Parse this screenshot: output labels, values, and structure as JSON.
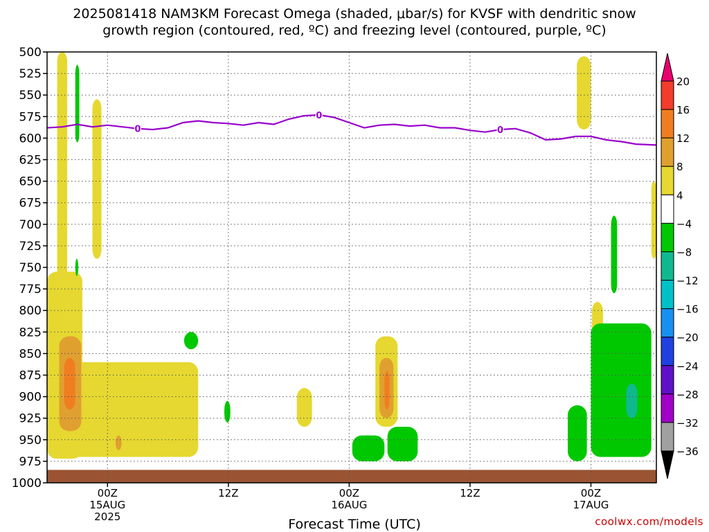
{
  "title_line1": "2025081418 NAM3KM Forecast Omega (shaded, μbar/s) for KVSF with dendritic snow",
  "title_line2": "growth region (contoured, red, ºC) and freezing level (contoured, purple, ºC)",
  "credit": "coolwx.com/models",
  "chart_data": {
    "type": "heatmap",
    "title": "2025081418 NAM3KM Forecast Omega (shaded, μbar/s) for KVSF with dendritic snow growth region (contoured, red, ºC) and freezing level (contoured, purple, ºC)",
    "xlabel": "Forecast Time (UTC)",
    "ylabel": "",
    "y_ticks": [
      500,
      525,
      550,
      575,
      600,
      625,
      650,
      675,
      700,
      725,
      750,
      775,
      800,
      825,
      850,
      875,
      900,
      925,
      950,
      975,
      1000
    ],
    "ylim": [
      1000,
      500
    ],
    "x_ticks": [
      {
        "hour": 0,
        "label1": "00Z",
        "label2": "15AUG",
        "label3": "2025"
      },
      {
        "hour": 12,
        "label1": "12Z",
        "label2": "",
        "label3": ""
      },
      {
        "hour": 24,
        "label1": "00Z",
        "label2": "16AUG",
        "label3": ""
      },
      {
        "hour": 36,
        "label1": "12Z",
        "label2": "",
        "label3": ""
      },
      {
        "hour": 48,
        "label1": "00Z",
        "label2": "17AUG",
        "label3": ""
      }
    ],
    "xlim": [
      -6,
      54.5
    ],
    "grid": true,
    "colorbar": {
      "labels": [
        "20",
        "16",
        "12",
        "8",
        "4",
        "−4",
        "−8",
        "−12",
        "−16",
        "−20",
        "−24",
        "−28",
        "−32",
        "−36"
      ],
      "colors": [
        "#e8006e",
        "#f23c2c",
        "#f07e20",
        "#e0a030",
        "#e6d830",
        "#ffffff",
        "#00c800",
        "#10b890",
        "#00c0c8",
        "#1890f0",
        "#2040e0",
        "#6010c8",
        "#a000c8",
        "#a0a0a0",
        "#000000"
      ]
    },
    "freezing_level": {
      "color": "#9900cc",
      "label": "0",
      "points": [
        [
          -6,
          588
        ],
        [
          -4.5,
          587
        ],
        [
          -3,
          584
        ],
        [
          -1.5,
          587
        ],
        [
          0,
          585
        ],
        [
          1.5,
          587
        ],
        [
          3,
          589
        ],
        [
          4.5,
          590
        ],
        [
          6,
          588
        ],
        [
          7.5,
          582
        ],
        [
          9,
          580
        ],
        [
          10.5,
          582
        ],
        [
          12,
          583
        ],
        [
          13.5,
          585
        ],
        [
          15,
          582
        ],
        [
          16.5,
          584
        ],
        [
          18,
          578
        ],
        [
          19.5,
          574
        ],
        [
          21,
          573
        ],
        [
          22.5,
          576
        ],
        [
          24,
          582
        ],
        [
          25.5,
          588
        ],
        [
          27,
          585
        ],
        [
          28.5,
          584
        ],
        [
          30,
          586
        ],
        [
          31.5,
          585
        ],
        [
          33,
          588
        ],
        [
          34.5,
          588
        ],
        [
          36,
          591
        ],
        [
          37.5,
          593
        ],
        [
          39,
          590
        ],
        [
          40.5,
          589
        ],
        [
          42,
          594
        ],
        [
          43.5,
          602
        ],
        [
          45,
          601
        ],
        [
          46.5,
          598
        ],
        [
          48,
          598
        ],
        [
          49.5,
          602
        ],
        [
          51,
          604
        ],
        [
          52.5,
          607
        ],
        [
          54.5,
          608
        ]
      ],
      "label_hours": [
        3,
        21,
        39
      ]
    },
    "terrain": {
      "color": "#9a5434",
      "surface_hpa": 985
    },
    "shaded_regions": [
      {
        "value": 5,
        "color": "#e6d830",
        "hpa_top": 500,
        "hpa_bottom": 965,
        "hour_start": -5.0,
        "hour_end": -4.0
      },
      {
        "value": 5,
        "color": "#e6d830",
        "hpa_top": 755,
        "hpa_bottom": 972,
        "hour_start": -6.0,
        "hour_end": -2.5
      },
      {
        "value": 5,
        "color": "#e6d830",
        "hpa_top": 860,
        "hpa_bottom": 970,
        "hour_start": -4.0,
        "hour_end": 9.0
      },
      {
        "value": 5,
        "color": "#e6d830",
        "hpa_top": 555,
        "hpa_bottom": 740,
        "hour_start": -1.5,
        "hour_end": -0.6
      },
      {
        "value": 10,
        "color": "#e0a030",
        "hpa_top": 830,
        "hpa_bottom": 940,
        "hour_start": -4.8,
        "hour_end": -2.6
      },
      {
        "value": 13,
        "color": "#f07e20",
        "hpa_top": 855,
        "hpa_bottom": 915,
        "hour_start": -4.3,
        "hour_end": -3.2
      },
      {
        "value": 10,
        "color": "#e0a030",
        "hpa_top": 945,
        "hpa_bottom": 962,
        "hour_start": 0.8,
        "hour_end": 1.4
      },
      {
        "value": 5,
        "color": "#e6d830",
        "hpa_top": 890,
        "hpa_bottom": 935,
        "hour_start": 18.8,
        "hour_end": 20.3
      },
      {
        "value": 5,
        "color": "#e6d830",
        "hpa_top": 830,
        "hpa_bottom": 935,
        "hour_start": 26.6,
        "hour_end": 28.8
      },
      {
        "value": 10,
        "color": "#e0a030",
        "hpa_top": 855,
        "hpa_bottom": 925,
        "hour_start": 27.0,
        "hour_end": 28.4
      },
      {
        "value": 13,
        "color": "#f07e20",
        "hpa_top": 870,
        "hpa_bottom": 915,
        "hour_start": 27.5,
        "hour_end": 28.0
      },
      {
        "value": 5,
        "color": "#e6d830",
        "hpa_top": 505,
        "hpa_bottom": 590,
        "hour_start": 46.6,
        "hour_end": 48.0
      },
      {
        "value": 5,
        "color": "#e6d830",
        "hpa_top": 790,
        "hpa_bottom": 880,
        "hour_start": 48.1,
        "hour_end": 49.2
      },
      {
        "value": 5,
        "color": "#e6d830",
        "hpa_top": 650,
        "hpa_bottom": 740,
        "hour_start": 54.0,
        "hour_end": 54.5
      },
      {
        "value": -6,
        "color": "#00c800",
        "hpa_top": 515,
        "hpa_bottom": 605,
        "hour_start": -3.2,
        "hour_end": -2.8
      },
      {
        "value": -6,
        "color": "#00c800",
        "hpa_top": 740,
        "hpa_bottom": 760,
        "hour_start": -3.2,
        "hour_end": -2.9
      },
      {
        "value": -6,
        "color": "#00c800",
        "hpa_top": 825,
        "hpa_bottom": 845,
        "hour_start": 7.6,
        "hour_end": 9.0
      },
      {
        "value": -6,
        "color": "#00c800",
        "hpa_top": 905,
        "hpa_bottom": 930,
        "hour_start": 11.6,
        "hour_end": 12.2
      },
      {
        "value": -6,
        "color": "#00c800",
        "hpa_top": 945,
        "hpa_bottom": 975,
        "hour_start": 24.3,
        "hour_end": 27.5
      },
      {
        "value": -6,
        "color": "#00c800",
        "hpa_top": 935,
        "hpa_bottom": 975,
        "hour_start": 27.8,
        "hour_end": 30.8
      },
      {
        "value": -6,
        "color": "#00c800",
        "hpa_top": 910,
        "hpa_bottom": 975,
        "hour_start": 45.7,
        "hour_end": 47.6
      },
      {
        "value": -6,
        "color": "#00c800",
        "hpa_top": 690,
        "hpa_bottom": 780,
        "hour_start": 50.0,
        "hour_end": 50.6
      },
      {
        "value": -6,
        "color": "#00c800",
        "hpa_top": 815,
        "hpa_bottom": 970,
        "hour_start": 48.0,
        "hour_end": 54.0
      },
      {
        "value": -9,
        "color": "#10b890",
        "hpa_top": 885,
        "hpa_bottom": 925,
        "hour_start": 51.5,
        "hour_end": 52.6
      }
    ]
  }
}
